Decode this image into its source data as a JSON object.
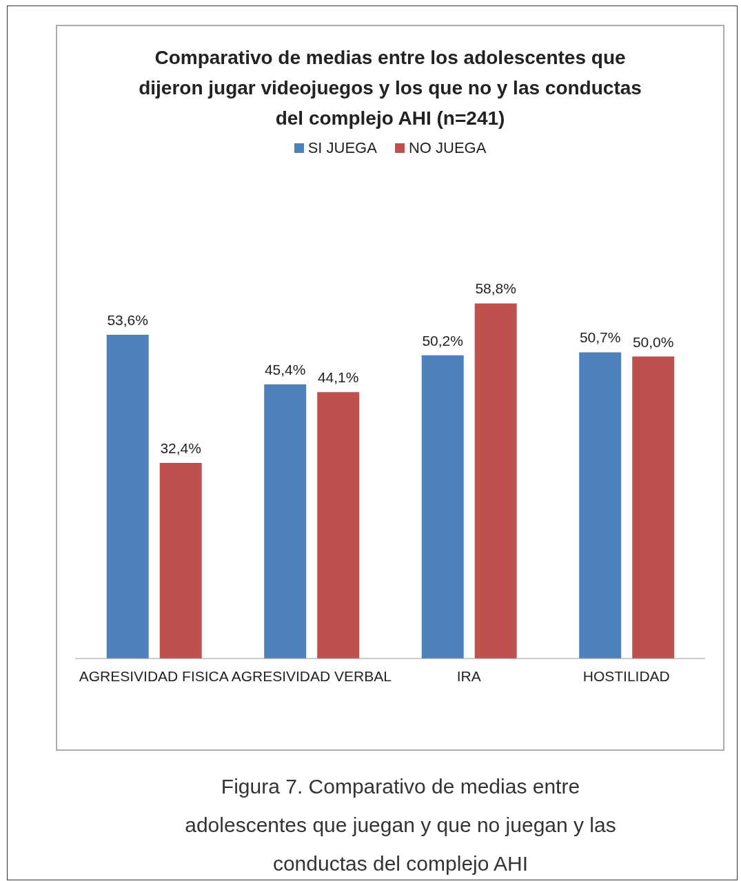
{
  "chart_data": {
    "type": "bar",
    "title": "Comparativo de medias entre los adolescentes que dijeron jugar videojuegos y los que no y las conductas del complejo AHI (n=241)",
    "categories": [
      "AGRESIVIDAD FISICA",
      "AGRESIVIDAD VERBAL",
      "IRA",
      "HOSTILIDAD"
    ],
    "series": [
      {
        "name": "SI JUEGA",
        "color": "#4f81bd",
        "values": [
          53.6,
          45.4,
          50.2,
          50.7
        ],
        "value_labels": [
          "53,6%",
          "45,4%",
          "50,2%",
          "50,7%"
        ]
      },
      {
        "name": "NO JUEGA",
        "color": "#c0504d",
        "values": [
          32.4,
          44.1,
          58.8,
          50.0
        ],
        "value_labels": [
          "32,4%",
          "44,1%",
          "58,8%",
          "50,0%"
        ]
      }
    ],
    "legend": "top",
    "annotations": [
      "Figura 7. Comparativo de medias entre adolescentes que juegan y que no juegan y las conductas del complejo AHI"
    ]
  }
}
